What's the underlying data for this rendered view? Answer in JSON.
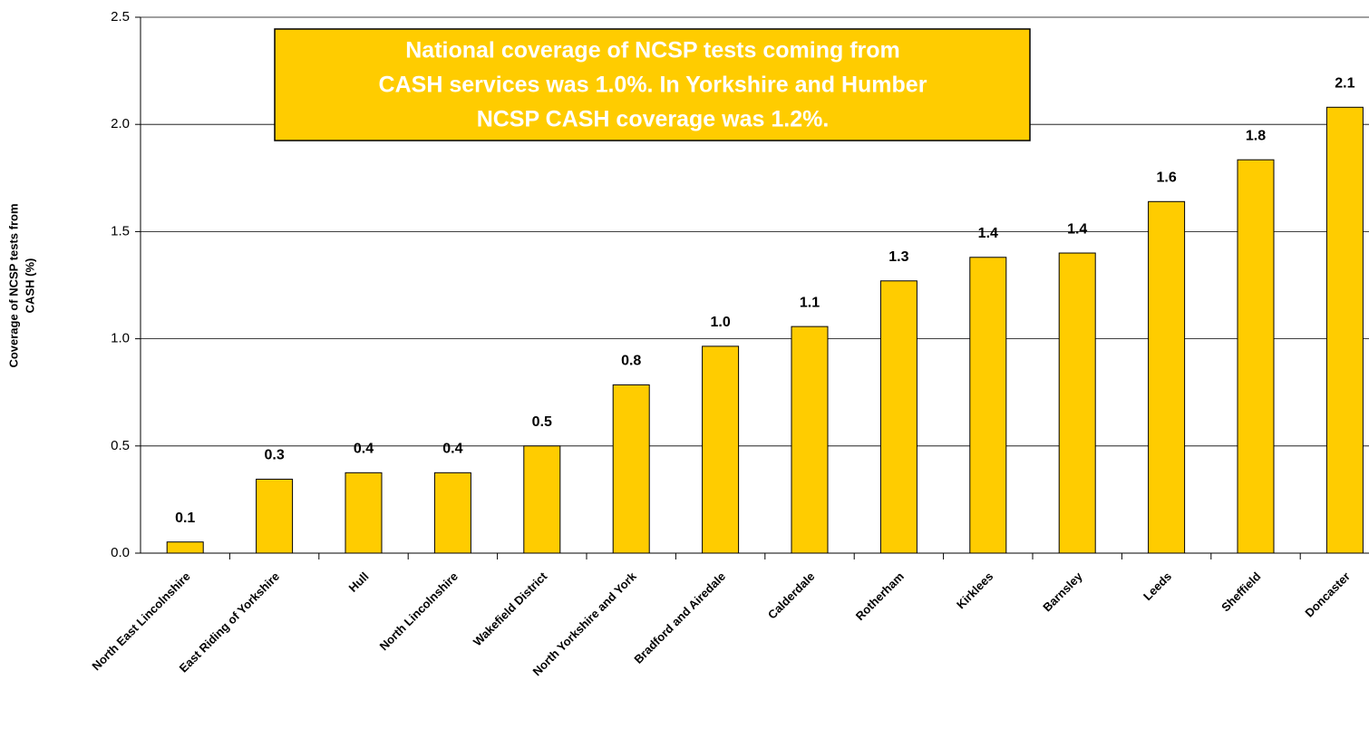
{
  "chart_data": {
    "type": "bar",
    "ylabel": [
      "Coverage of NCSP tests from",
      "CASH (%)"
    ],
    "annotation": [
      "National coverage of  NCSP tests coming from",
      "CASH services was 1.0%. In Yorkshire and Humber",
      "NCSP CASH coverage was 1.2%."
    ],
    "categories": [
      "North East Lincolnshire",
      "East Riding of Yorkshire",
      "Hull",
      "North Lincolnshire",
      "Wakefield District",
      "North Yorkshire and York",
      "Bradford and Airedale",
      "Calderdale",
      "Rotherham",
      "Kirklees",
      "Barnsley",
      "Leeds",
      "Sheffield",
      "Doncaster"
    ],
    "values": [
      0.052,
      0.345,
      0.375,
      0.375,
      0.5,
      0.785,
      0.965,
      1.057,
      1.27,
      1.38,
      1.4,
      1.64,
      1.835,
      2.08
    ],
    "value_labels": [
      "0.1",
      "0.3",
      "0.4",
      "0.4",
      "0.5",
      "0.8",
      "1.0",
      "1.1",
      "1.3",
      "1.4",
      "1.4",
      "1.6",
      "1.8",
      "2.1"
    ],
    "color": "#ffcc00",
    "ylim": [
      0,
      2.5
    ],
    "yticks": [
      {
        "value": 0,
        "label": "0.0"
      },
      0.5,
      {
        "value": 1,
        "label": "1.0"
      },
      1.5,
      {
        "value": 2,
        "label": "2.0"
      },
      2.5
    ],
    "grid": true
  }
}
